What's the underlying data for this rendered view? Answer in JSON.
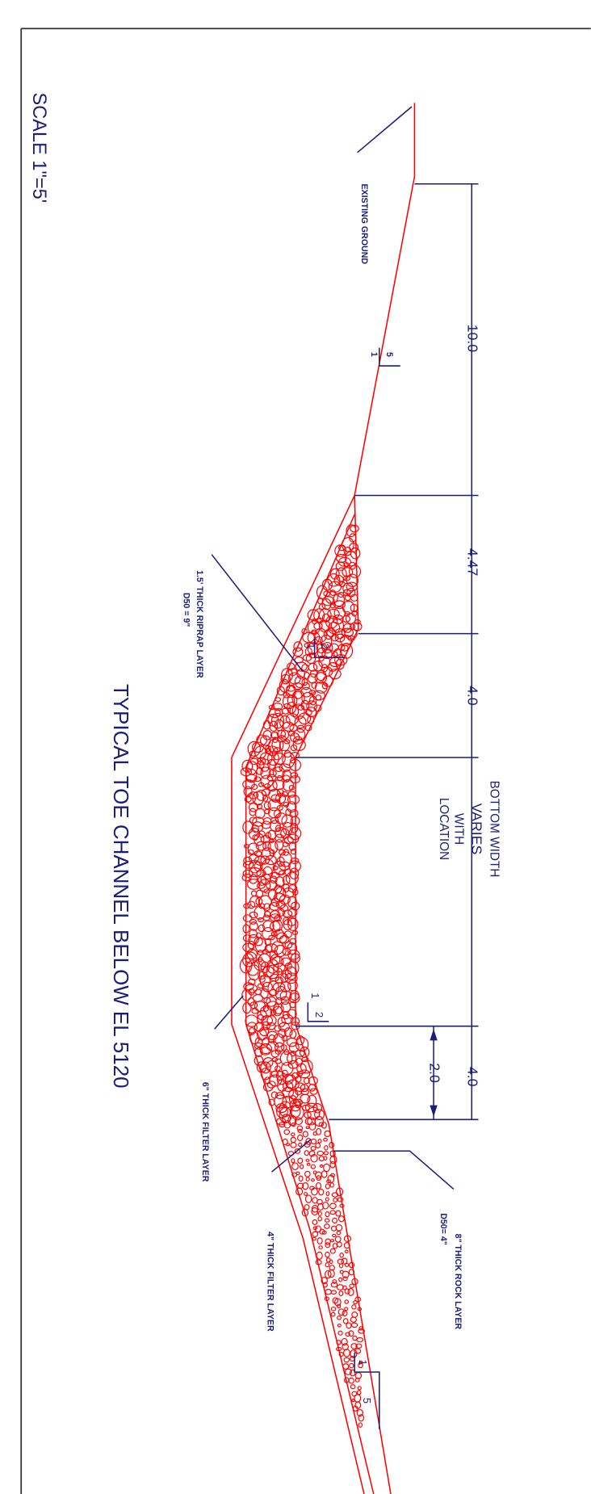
{
  "scale": "SCALE 1\"=5'",
  "title": "TYPICAL TOE CHANNEL BELOW EL 5120",
  "existing_ground": "EXISTING GROUND",
  "dimensions": [
    "10.0",
    "4.47",
    "4.0",
    "4.0",
    "2.0"
  ],
  "bottom_width": [
    "BOTTOM WIDTH",
    "VARIES",
    "WITH",
    "LOCATION"
  ],
  "slopes": [
    {
      "rise": "5",
      "run": "1"
    },
    {
      "rise": "2",
      "run": "1"
    },
    {
      "rise": "2",
      "run": "1"
    },
    {
      "rise": "5",
      "run": "1"
    }
  ],
  "riprap": {
    "label": "1.5' THICK RIPRAP LAYER",
    "d50": "D50 = 9\""
  },
  "filter_6": "6\" THICK FILTER LAYER",
  "rock": {
    "label": "8\" THICK ROCK LAYER",
    "d50": "D50= 4\""
  },
  "filter_4": "4\" THICK FILTER LAYER"
}
